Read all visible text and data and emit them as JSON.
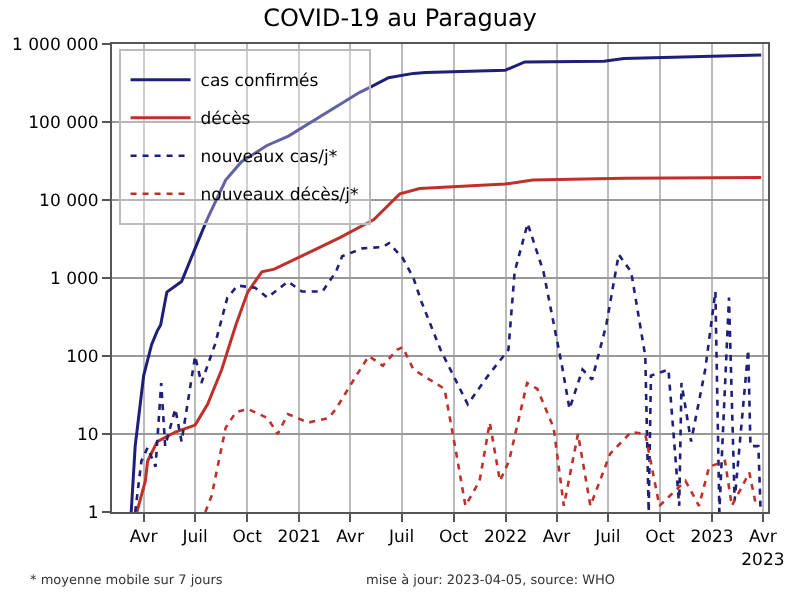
{
  "chart_data": {
    "type": "line",
    "title": "COVID-19 au Paraguay",
    "log": "y",
    "grid": true,
    "legend": "top left",
    "xlim": [
      "2020-02-05",
      "2023-04-10"
    ],
    "ylim": [
      1,
      1000000
    ],
    "xticks": [
      {
        "value": "2020-04-01",
        "label": "Avr"
      },
      {
        "value": "2020-07-01",
        "label": "Juil"
      },
      {
        "value": "2020-10-01",
        "label": "Oct"
      },
      {
        "value": "2021-01-01",
        "label": "2021"
      },
      {
        "value": "2021-04-01",
        "label": "Avr"
      },
      {
        "value": "2021-07-01",
        "label": "Juil"
      },
      {
        "value": "2021-10-01",
        "label": "Oct"
      },
      {
        "value": "2022-01-01",
        "label": "2022"
      },
      {
        "value": "2022-04-01",
        "label": "Avr"
      },
      {
        "value": "2022-07-01",
        "label": "Juil"
      },
      {
        "value": "2022-10-01",
        "label": "Oct"
      },
      {
        "value": "2023-01-01",
        "label": "2023"
      },
      {
        "value": "2023-04-01",
        "label": "Avr\n2023"
      }
    ],
    "yticks": [
      1,
      10,
      100,
      {
        "value": 1000,
        "label": "1 000"
      },
      {
        "value": 10000,
        "label": "10 000"
      },
      {
        "value": 100000,
        "label": "100 000"
      },
      {
        "value": 1000000,
        "label": "1 000 000"
      }
    ],
    "annotations": [
      "* moyenne mobile sur 7 jours",
      "mise à jour: 2023-04-05, source: WHO"
    ],
    "series": [
      {
        "name": "cas confirmés",
        "color": "#1f1f7a",
        "line_style": "solid",
        "x": [
          "2020-03-10",
          "2020-03-17",
          "2020-04-01",
          "2020-04-15",
          "2020-04-25",
          "2020-05-01",
          "2020-05-12",
          "2020-06-07",
          "2020-06-14",
          "2020-07-01",
          "2020-07-22",
          "2020-08-24",
          "2020-09-21",
          "2020-11-05",
          "2020-12-13",
          "2021-04-18",
          "2021-05-07",
          "2021-06-08",
          "2021-07-22",
          "2021-08-13",
          "2021-12-31",
          "2022-02-04",
          "2022-06-24",
          "2022-07-29",
          "2023-03-29"
        ],
        "values": [
          1,
          7,
          56,
          140,
          210,
          250,
          660,
          900,
          1200,
          2400,
          5600,
          18000,
          31000,
          50000,
          66000,
          240000,
          280000,
          370000,
          420000,
          430000,
          460000,
          590000,
          600000,
          650000,
          720000
        ]
      },
      {
        "name": "décès",
        "color": "#c0302a",
        "line_style": "solid",
        "x": [
          "2020-03-20",
          "2020-04-04",
          "2020-04-08",
          "2020-04-25",
          "2020-05-27",
          "2020-07-01",
          "2020-07-23",
          "2020-08-17",
          "2020-09-11",
          "2020-10-02",
          "2020-10-27",
          "2020-11-18",
          "2021-01-17",
          "2021-03-14",
          "2021-05-13",
          "2021-06-28",
          "2021-08-02",
          "2021-12-31",
          "2022-02-18",
          "2022-07-29",
          "2023-03-29"
        ],
        "values": [
          1,
          2.5,
          4.5,
          8,
          10.6,
          13,
          24,
          67,
          250,
          660,
          1200,
          1300,
          2100,
          3300,
          5600,
          12000,
          14000,
          16000,
          18000,
          19000,
          19500
        ]
      },
      {
        "name": "nouveaux cas/j*",
        "color": "#1f1f7a",
        "line_style": "dotted",
        "x": [
          "2020-03-17",
          "2020-03-28",
          "2020-04-08",
          "2020-04-22",
          "2020-05-02",
          "2020-05-09",
          "2020-05-27",
          "2020-06-07",
          "2020-07-01",
          "2020-07-12",
          "2020-08-05",
          "2020-08-27",
          "2020-09-14",
          "2020-10-15",
          "2020-11-06",
          "2020-12-12",
          "2021-01-06",
          "2021-02-11",
          "2021-03-07",
          "2021-03-18",
          "2021-04-23",
          "2021-05-29",
          "2021-06-09",
          "2021-07-03",
          "2021-07-22",
          "2021-08-05",
          "2021-09-08",
          "2021-10-26",
          "2021-12-01",
          "2022-01-06",
          "2022-01-17",
          "2022-02-09",
          "2022-03-09",
          "2022-04-10",
          "2022-04-24",
          "2022-05-17",
          "2022-06-03",
          "2022-06-28",
          "2022-07-20",
          "2022-08-11",
          "2022-09-05",
          "2022-09-11",
          "2022-09-15",
          "2022-10-16",
          "2022-11-04",
          "2022-11-08",
          "2022-11-25",
          "2022-12-20",
          "2023-01-07",
          "2023-01-14",
          "2023-01-31",
          "2023-02-10",
          "2023-03-06",
          "2023-03-10",
          "2023-03-24",
          "2023-03-28"
        ],
        "values": [
          1,
          4.5,
          6.7,
          3.8,
          45,
          7,
          21,
          8,
          100,
          45,
          140,
          560,
          800,
          750,
          560,
          900,
          670,
          670,
          1200,
          1900,
          2400,
          2500,
          2800,
          1800,
          1000,
          500,
          120,
          24,
          56,
          120,
          1200,
          5000,
          1200,
          80,
          21,
          67,
          50,
          250,
          2000,
          1200,
          100,
          1,
          56,
          67,
          1.2,
          45,
          8,
          67,
          670,
          1,
          560,
          1.4,
          120,
          7,
          7,
          1
        ]
      },
      {
        "name": "nouveaux décès/j*",
        "color": "#c0302a",
        "line_style": "dotted",
        "x": [
          "2020-07-19",
          "2020-07-30",
          "2020-08-24",
          "2020-09-11",
          "2020-10-02",
          "2020-11-06",
          "2020-11-24",
          "2020-12-12",
          "2021-01-17",
          "2021-02-22",
          "2021-03-07",
          "2021-04-12",
          "2021-05-04",
          "2021-05-29",
          "2021-06-23",
          "2021-07-03",
          "2021-07-22",
          "2021-09-15",
          "2021-10-04",
          "2021-10-22",
          "2021-11-16",
          "2021-12-04",
          "2021-12-22",
          "2022-01-07",
          "2022-02-08",
          "2022-02-26",
          "2022-03-27",
          "2022-04-14",
          "2022-05-09",
          "2022-05-31",
          "2022-07-05",
          "2022-08-11",
          "2022-09-05",
          "2022-09-30",
          "2022-11-15",
          "2022-12-09",
          "2022-12-27",
          "2023-01-24",
          "2023-02-05",
          "2023-03-08",
          "2023-03-20"
        ],
        "values": [
          1,
          1.6,
          12,
          19,
          21,
          16,
          10,
          18,
          14,
          16,
          21,
          56,
          100,
          75,
          120,
          130,
          67,
          38,
          6.7,
          1.2,
          2.5,
          14,
          2.5,
          4.5,
          45,
          38,
          12,
          1.2,
          10,
          1.2,
          5.6,
          10.6,
          10,
          1.2,
          2.5,
          1.2,
          3.8,
          4.5,
          1.2,
          3.2,
          1.2
        ]
      }
    ]
  }
}
